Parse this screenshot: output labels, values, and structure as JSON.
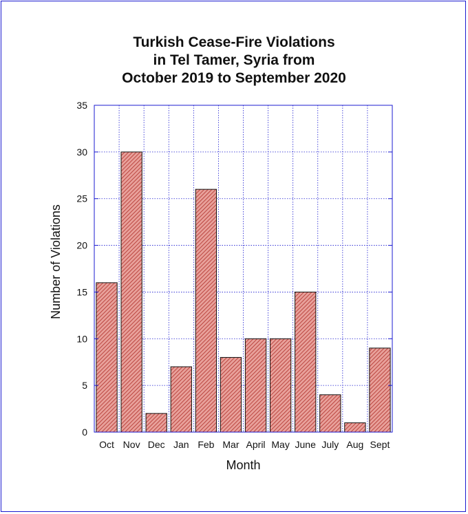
{
  "chart_data": {
    "type": "bar",
    "title_lines": [
      "Turkish Cease-Fire Violations",
      "in Tel Tamer, Syria from",
      "October 2019 to September 2020"
    ],
    "xlabel": "Month",
    "ylabel": "Number of Violations",
    "categories": [
      "Oct",
      "Nov",
      "Dec",
      "Jan",
      "Feb",
      "Mar",
      "April",
      "May",
      "June",
      "July",
      "Aug",
      "Sept"
    ],
    "values": [
      16,
      30,
      2,
      7,
      26,
      8,
      10,
      10,
      15,
      4,
      1,
      9
    ],
    "ylim": [
      0,
      35
    ],
    "yticks": [
      0,
      5,
      10,
      15,
      20,
      25,
      30,
      35
    ],
    "grid": true,
    "legend": "none",
    "colors": {
      "bar_fill": "#e8a09a",
      "bar_hatch": "#b0302a",
      "bar_stroke": "#111111",
      "axis": "#1a1ad0",
      "grid": "#1a1ad0",
      "frame": "#1a1ad0"
    }
  }
}
